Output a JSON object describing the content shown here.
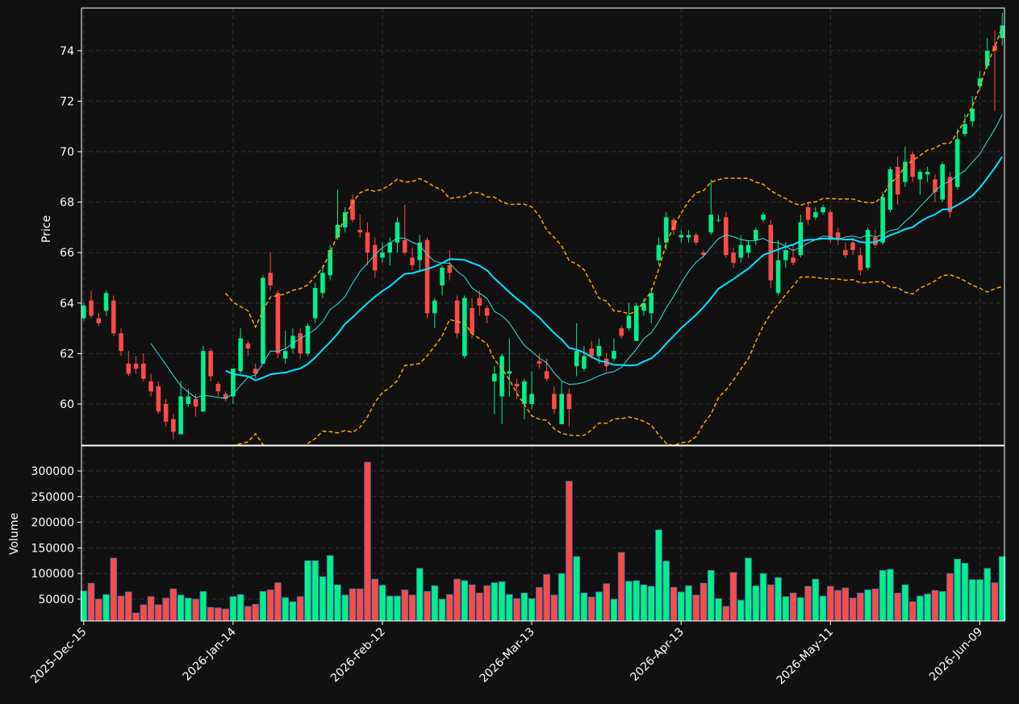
{
  "chart_data": {
    "type": "candlestick",
    "ylabel": "Price",
    "volume_ylabel": "Volume",
    "categories": [
      "2025-Dec-15",
      null,
      null,
      null,
      null,
      null,
      null,
      null,
      null,
      null,
      null,
      null,
      null,
      null,
      null,
      null,
      null,
      null,
      null,
      null,
      "2026-Jan-14",
      null,
      null,
      null,
      null,
      null,
      null,
      null,
      null,
      null,
      null,
      null,
      null,
      null,
      null,
      null,
      null,
      null,
      null,
      null,
      "2026-Feb-12",
      null,
      null,
      null,
      null,
      null,
      null,
      null,
      null,
      null,
      null,
      null,
      null,
      null,
      null,
      null,
      null,
      null,
      null,
      null,
      "2026-Mar-13",
      null,
      null,
      null,
      null,
      null,
      null,
      null,
      null,
      null,
      null,
      null,
      null,
      null,
      null,
      null,
      null,
      null,
      null,
      null,
      "2026-Apr-13",
      null,
      null,
      null,
      null,
      null,
      null,
      null,
      null,
      null,
      null,
      null,
      null,
      null,
      null,
      null,
      null,
      null,
      null,
      null,
      "2026-May-11",
      null,
      null,
      null,
      null,
      null,
      null,
      null,
      null,
      null,
      null,
      null,
      null,
      null,
      null,
      null,
      null,
      null,
      null,
      null,
      "2026-Jun-09",
      null,
      null,
      null
    ],
    "open": [
      63.4,
      64.1,
      63.4,
      63.7,
      64.1,
      62.8,
      61.6,
      61.6,
      61.6,
      60.9,
      60.7,
      60.0,
      59.4,
      58.8,
      60.0,
      60.2,
      59.7,
      62.1,
      60.8,
      60.4,
      60.3,
      61.3,
      62.4,
      61.4,
      61.6,
      65.2,
      64.4,
      61.8,
      62.2,
      62.8,
      62.0,
      63.4,
      64.4,
      65.1,
      66.6,
      67.0,
      68.1,
      66.9,
      66.8,
      66.3,
      65.8,
      66.0,
      66.4,
      66.5,
      65.8,
      65.7,
      66.5,
      63.6,
      64.7,
      65.5,
      64.1,
      61.9,
      63.8,
      64.2,
      63.8,
      60.9,
      60.3,
      61.2,
      60.8,
      60.0,
      60.0,
      61.7,
      61.3,
      60.4,
      59.2,
      60.4,
      61.5,
      61.4,
      62.2,
      61.9,
      61.8,
      61.8,
      63.0,
      63.0,
      62.5,
      63.7,
      63.6,
      65.7,
      66.4,
      67.3,
      66.6,
      66.6,
      66.7,
      66.0,
      66.8,
      67.3,
      67.4,
      66.0,
      65.8,
      66.0,
      66.5,
      67.3,
      67.1,
      64.4,
      65.7,
      65.8,
      65.9,
      67.8,
      67.4,
      67.6,
      67.6,
      66.8,
      66.1,
      66.4,
      65.9,
      65.4,
      66.6,
      66.4,
      67.7,
      69.4,
      68.8,
      69.9,
      68.9,
      69.1,
      68.9,
      68.1,
      69.0,
      68.6,
      70.7,
      71.2,
      72.6,
      73.4,
      74.2,
      74.5
    ],
    "high": [
      64.0,
      64.5,
      63.6,
      64.5,
      64.3,
      63.0,
      62.1,
      61.9,
      62.0,
      61.2,
      60.9,
      60.2,
      59.6,
      60.9,
      60.6,
      60.4,
      62.3,
      62.2,
      60.9,
      60.5,
      61.4,
      63.0,
      62.5,
      61.6,
      65.1,
      66.0,
      64.5,
      62.9,
      63.0,
      63.0,
      63.2,
      64.8,
      65.5,
      66.3,
      68.5,
      67.8,
      68.3,
      67.5,
      67.2,
      66.6,
      66.4,
      66.6,
      67.4,
      67.9,
      66.2,
      66.7,
      66.6,
      64.2,
      65.5,
      66.1,
      64.3,
      64.3,
      64.2,
      64.5,
      63.9,
      61.5,
      62.0,
      62.6,
      61.0,
      61.0,
      61.3,
      62.0,
      61.8,
      60.7,
      60.9,
      60.6,
      63.2,
      62.3,
      62.5,
      62.6,
      62.0,
      62.6,
      63.1,
      64.0,
      64.0,
      64.2,
      64.6,
      66.6,
      67.6,
      67.4,
      66.9,
      66.9,
      66.8,
      66.1,
      68.9,
      67.5,
      67.6,
      66.2,
      66.7,
      66.5,
      67.0,
      67.6,
      67.3,
      66.5,
      66.4,
      66.3,
      67.5,
      68.0,
      67.8,
      67.9,
      67.7,
      67.0,
      66.4,
      66.6,
      66.2,
      67.0,
      66.9,
      68.4,
      69.4,
      69.8,
      70.2,
      70.0,
      69.3,
      69.4,
      69.1,
      69.6,
      69.2,
      70.9,
      71.5,
      72.2,
      73.2,
      74.5,
      74.8,
      75.5
    ],
    "low": [
      63.3,
      63.4,
      63.1,
      63.5,
      62.7,
      61.9,
      61.1,
      61.2,
      60.9,
      60.3,
      59.6,
      59.1,
      58.6,
      58.8,
      59.9,
      59.5,
      59.7,
      60.9,
      60.3,
      60.1,
      60.0,
      61.2,
      61.9,
      61.0,
      61.6,
      64.5,
      61.8,
      61.6,
      62.0,
      61.8,
      61.9,
      63.2,
      64.2,
      64.9,
      66.5,
      66.8,
      67.2,
      66.6,
      65.5,
      65.0,
      65.6,
      65.5,
      66.0,
      65.9,
      65.3,
      65.3,
      63.4,
      63.0,
      64.3,
      64.9,
      62.6,
      61.8,
      62.6,
      63.5,
      63.2,
      59.6,
      59.2,
      60.3,
      60.2,
      59.4,
      59.8,
      61.4,
      60.9,
      59.6,
      59.2,
      59.1,
      61.1,
      61.3,
      61.8,
      61.6,
      61.3,
      61.7,
      62.6,
      62.9,
      62.5,
      63.5,
      63.2,
      65.5,
      66.1,
      66.7,
      66.4,
      66.4,
      66.3,
      65.8,
      66.7,
      67.2,
      65.8,
      65.4,
      65.6,
      65.8,
      66.3,
      67.2,
      64.6,
      64.3,
      65.4,
      65.5,
      65.8,
      67.1,
      67.3,
      67.5,
      66.4,
      66.3,
      65.8,
      65.9,
      65.1,
      65.3,
      66.2,
      66.3,
      67.6,
      67.9,
      68.6,
      68.8,
      68.3,
      68.8,
      68.0,
      68.0,
      67.4,
      68.5,
      70.6,
      71.0,
      72.4,
      73.3,
      71.6,
      74.2
    ],
    "close": [
      63.9,
      63.5,
      63.2,
      64.4,
      62.8,
      62.1,
      61.2,
      61.4,
      61.0,
      60.5,
      59.7,
      59.3,
      58.9,
      60.3,
      60.3,
      59.9,
      62.1,
      61.1,
      60.5,
      60.2,
      61.4,
      62.6,
      62.2,
      61.2,
      65.0,
      64.7,
      62.0,
      62.1,
      62.7,
      62.0,
      63.1,
      64.6,
      65.2,
      66.1,
      67.1,
      67.6,
      67.3,
      66.8,
      66.0,
      65.3,
      66.0,
      66.4,
      67.2,
      66.0,
      65.5,
      66.4,
      63.6,
      64.1,
      65.4,
      65.2,
      62.8,
      64.2,
      62.8,
      63.9,
      63.5,
      61.2,
      61.9,
      61.3,
      60.7,
      60.9,
      60.4,
      61.6,
      61.0,
      59.8,
      60.4,
      59.8,
      62.1,
      61.9,
      61.9,
      62.3,
      61.5,
      62.1,
      62.7,
      63.5,
      63.9,
      64.0,
      64.4,
      66.3,
      67.4,
      66.9,
      66.7,
      66.7,
      66.4,
      65.9,
      67.5,
      67.3,
      65.9,
      65.6,
      66.3,
      66.3,
      66.9,
      67.5,
      64.9,
      65.7,
      66.1,
      65.6,
      67.2,
      67.3,
      67.6,
      67.8,
      66.5,
      66.5,
      65.9,
      66.1,
      65.3,
      66.9,
      66.3,
      68.2,
      69.3,
      68.3,
      69.6,
      69.0,
      69.2,
      69.2,
      68.4,
      69.5,
      67.6,
      70.5,
      71.1,
      71.7,
      72.9,
      74.0,
      74.0,
      75.0
    ],
    "volume": [
      66000,
      81000,
      50000,
      59000,
      130000,
      56000,
      64000,
      23000,
      39000,
      55000,
      39000,
      52000,
      70000,
      58000,
      52000,
      50000,
      65000,
      34000,
      33000,
      31000,
      55000,
      59000,
      36000,
      40000,
      65000,
      68000,
      82000,
      53000,
      45000,
      55000,
      125000,
      125000,
      94000,
      135000,
      78000,
      58000,
      70000,
      70000,
      317000,
      89000,
      77000,
      56000,
      56000,
      68000,
      58000,
      110000,
      65000,
      76000,
      50000,
      59000,
      89000,
      86000,
      78000,
      62000,
      76000,
      82000,
      84000,
      59000,
      51000,
      62000,
      51000,
      73000,
      98000,
      58000,
      100000,
      280000,
      133000,
      62000,
      54000,
      64000,
      80000,
      50000,
      141000,
      85000,
      86000,
      78000,
      75000,
      185000,
      124000,
      73000,
      64000,
      76000,
      58000,
      81000,
      106000,
      51000,
      36000,
      102000,
      48000,
      130000,
      76000,
      100000,
      78000,
      92000,
      55000,
      62000,
      53000,
      75000,
      89000,
      56000,
      75000,
      67000,
      72000,
      52000,
      62000,
      68000,
      70000,
      106000,
      108000,
      62000,
      78000,
      45000,
      56000,
      60000,
      67000,
      65000,
      100000,
      128000,
      120000,
      88000,
      88000,
      110000,
      82000,
      133000
    ],
    "up_color": "#00f08a",
    "down_color": "#ff4a4a",
    "volume_edge_color": "#3b6fb0",
    "indicators": [
      {
        "type": "sma",
        "window": 10,
        "color": "#35e0d8",
        "width": 1
      },
      {
        "type": "sma",
        "window": 20,
        "color": "#00e5ff",
        "width": 2
      },
      {
        "type": "bollinger",
        "window": 20,
        "k": 2,
        "color": "#ffa500",
        "width": 1.5
      }
    ],
    "ylim": [
      58.37,
      75.69
    ],
    "yticks": [
      60,
      62,
      64,
      66,
      68,
      70,
      72,
      74
    ],
    "volume_ylim": [
      7500,
      348700
    ],
    "volume_yticks": [
      50000,
      100000,
      150000,
      200000,
      250000,
      300000
    ],
    "grid": true
  }
}
